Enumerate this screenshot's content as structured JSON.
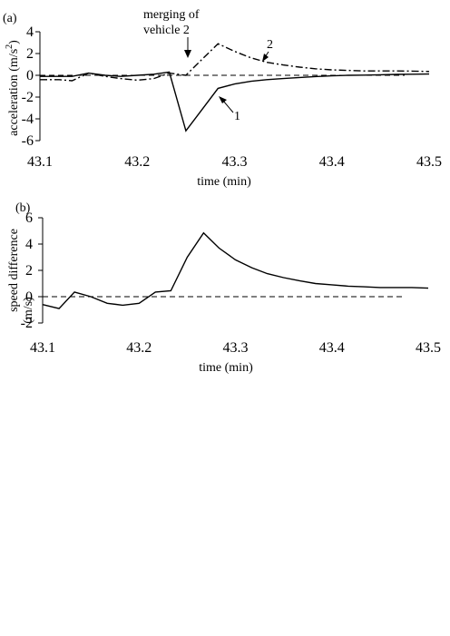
{
  "chart_data": [
    {
      "type": "line",
      "panel_label": "(a)",
      "xlabel": "time (min)",
      "ylabel": "acceleration (m/s",
      "ylabel_sup": "2",
      "ylabel_close": ")",
      "xlim": [
        43.1,
        43.5
      ],
      "ylim": [
        -6,
        4
      ],
      "xticks": [
        "43.1",
        "43.2",
        "43.3",
        "43.4",
        "43.5"
      ],
      "yticks": [
        "4",
        "2",
        "0",
        "-2",
        "-4",
        "-6"
      ],
      "reference_line": 0,
      "series": [
        {
          "label": "1",
          "style": "solid",
          "x": [
            43.1,
            43.12,
            43.133,
            43.15,
            43.167,
            43.183,
            43.2,
            43.217,
            43.233,
            43.25,
            43.267,
            43.283,
            43.3,
            43.317,
            43.333,
            43.35,
            43.367,
            43.383,
            43.4,
            43.417,
            43.433,
            43.45,
            43.467,
            43.483,
            43.5
          ],
          "y": [
            -0.1,
            -0.1,
            -0.1,
            0.2,
            0.0,
            -0.1,
            0.0,
            0.1,
            0.3,
            -5.1,
            -3.1,
            -1.2,
            -0.8,
            -0.55,
            -0.4,
            -0.3,
            -0.2,
            -0.12,
            -0.05,
            0.0,
            0.02,
            0.05,
            0.08,
            0.1,
            0.12
          ]
        },
        {
          "label": "2",
          "style": "dash-dot",
          "x": [
            43.1,
            43.12,
            43.133,
            43.15,
            43.167,
            43.183,
            43.2,
            43.217,
            43.233,
            43.25,
            43.267,
            43.283,
            43.3,
            43.317,
            43.333,
            43.35,
            43.367,
            43.383,
            43.4,
            43.417,
            43.433,
            43.45,
            43.467,
            43.483,
            43.5
          ],
          "y": [
            -0.4,
            -0.4,
            -0.5,
            0.2,
            -0.1,
            -0.3,
            -0.45,
            -0.3,
            0.2,
            0.0,
            1.5,
            2.9,
            2.2,
            1.6,
            1.2,
            0.95,
            0.75,
            0.6,
            0.5,
            0.45,
            0.4,
            0.4,
            0.4,
            0.38,
            0.35
          ]
        }
      ],
      "annotations": {
        "merge_line1": "merging of",
        "merge_line2": "vehicle 2"
      }
    },
    {
      "type": "line",
      "panel_label": "(b)",
      "xlabel": "time (min)",
      "ylabel_line1": "speed difference",
      "ylabel_line2": "(m/s)",
      "xlim": [
        43.1,
        43.5
      ],
      "ylim": [
        -2,
        6
      ],
      "xticks": [
        "43.1",
        "43.2",
        "43.3",
        "43.4",
        "43.5"
      ],
      "yticks": [
        "6",
        "4",
        "2",
        "0",
        "-2"
      ],
      "reference_line": 0,
      "series": [
        {
          "style": "solid",
          "x": [
            43.1,
            43.117,
            43.133,
            43.15,
            43.167,
            43.183,
            43.2,
            43.217,
            43.233,
            43.25,
            43.267,
            43.283,
            43.3,
            43.317,
            43.333,
            43.35,
            43.367,
            43.383,
            43.4,
            43.417,
            43.433,
            43.45,
            43.467,
            43.483,
            43.5
          ],
          "y": [
            -0.6,
            -0.9,
            0.35,
            0.0,
            -0.5,
            -0.65,
            -0.5,
            0.35,
            0.45,
            3.0,
            4.85,
            3.7,
            2.8,
            2.2,
            1.75,
            1.45,
            1.2,
            1.0,
            0.9,
            0.8,
            0.75,
            0.7,
            0.7,
            0.7,
            0.65
          ]
        }
      ]
    }
  ]
}
